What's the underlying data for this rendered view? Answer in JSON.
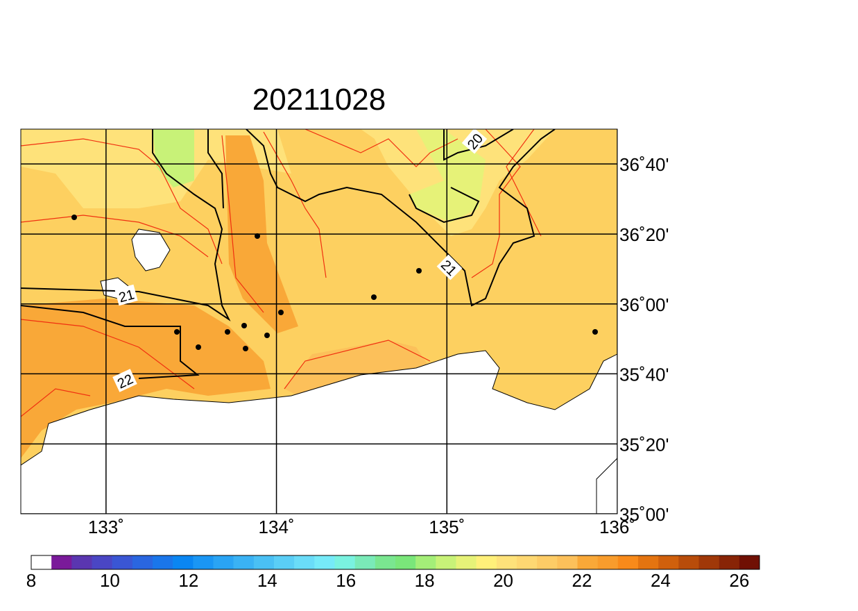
{
  "map": {
    "title": "20211028",
    "xlim": [
      132.5,
      136
    ],
    "ylim": [
      35,
      36.833
    ],
    "xticks": [
      {
        "value": 133,
        "label": "133˚"
      },
      {
        "value": 134,
        "label": "134˚"
      },
      {
        "value": 135,
        "label": "135˚"
      },
      {
        "value": 136,
        "label": "136˚"
      }
    ],
    "yticks": [
      {
        "value": 35,
        "label": "35˚00'"
      },
      {
        "value": 35.333,
        "label": "35˚20'"
      },
      {
        "value": 35.667,
        "label": "35˚40'"
      },
      {
        "value": 36,
        "label": "36˚00'"
      },
      {
        "value": 36.333,
        "label": "36˚20'"
      },
      {
        "value": 36.667,
        "label": "36˚40'"
      }
    ],
    "contour_labels": [
      "20",
      "21",
      "21",
      "22"
    ],
    "colorbar": {
      "range": [
        8,
        26
      ],
      "ticks": [
        8,
        10,
        12,
        14,
        16,
        18,
        20,
        22,
        24,
        26
      ],
      "colors": [
        "#ffffff",
        "#7a1a9a",
        "#5a36b0",
        "#4a46c4",
        "#3a56d4",
        "#2a66e0",
        "#1a76ea",
        "#0a86f2",
        "#1a96f4",
        "#2aa4f4",
        "#3ab2f4",
        "#4ac0f4",
        "#5acef6",
        "#6adcf8",
        "#76eaf8",
        "#7af2e0",
        "#7aeab8",
        "#7ae690",
        "#7ae67a",
        "#a4ee78",
        "#c8f278",
        "#e6f278",
        "#fff07a",
        "#fee27a",
        "#fed872",
        "#fdcc66",
        "#fcc05a",
        "#f9a838",
        "#f89c2c",
        "#f88a1a",
        "#e47410",
        "#d0600c",
        "#b84c0a",
        "#a03808",
        "#882406",
        "#701004"
      ]
    }
  }
}
